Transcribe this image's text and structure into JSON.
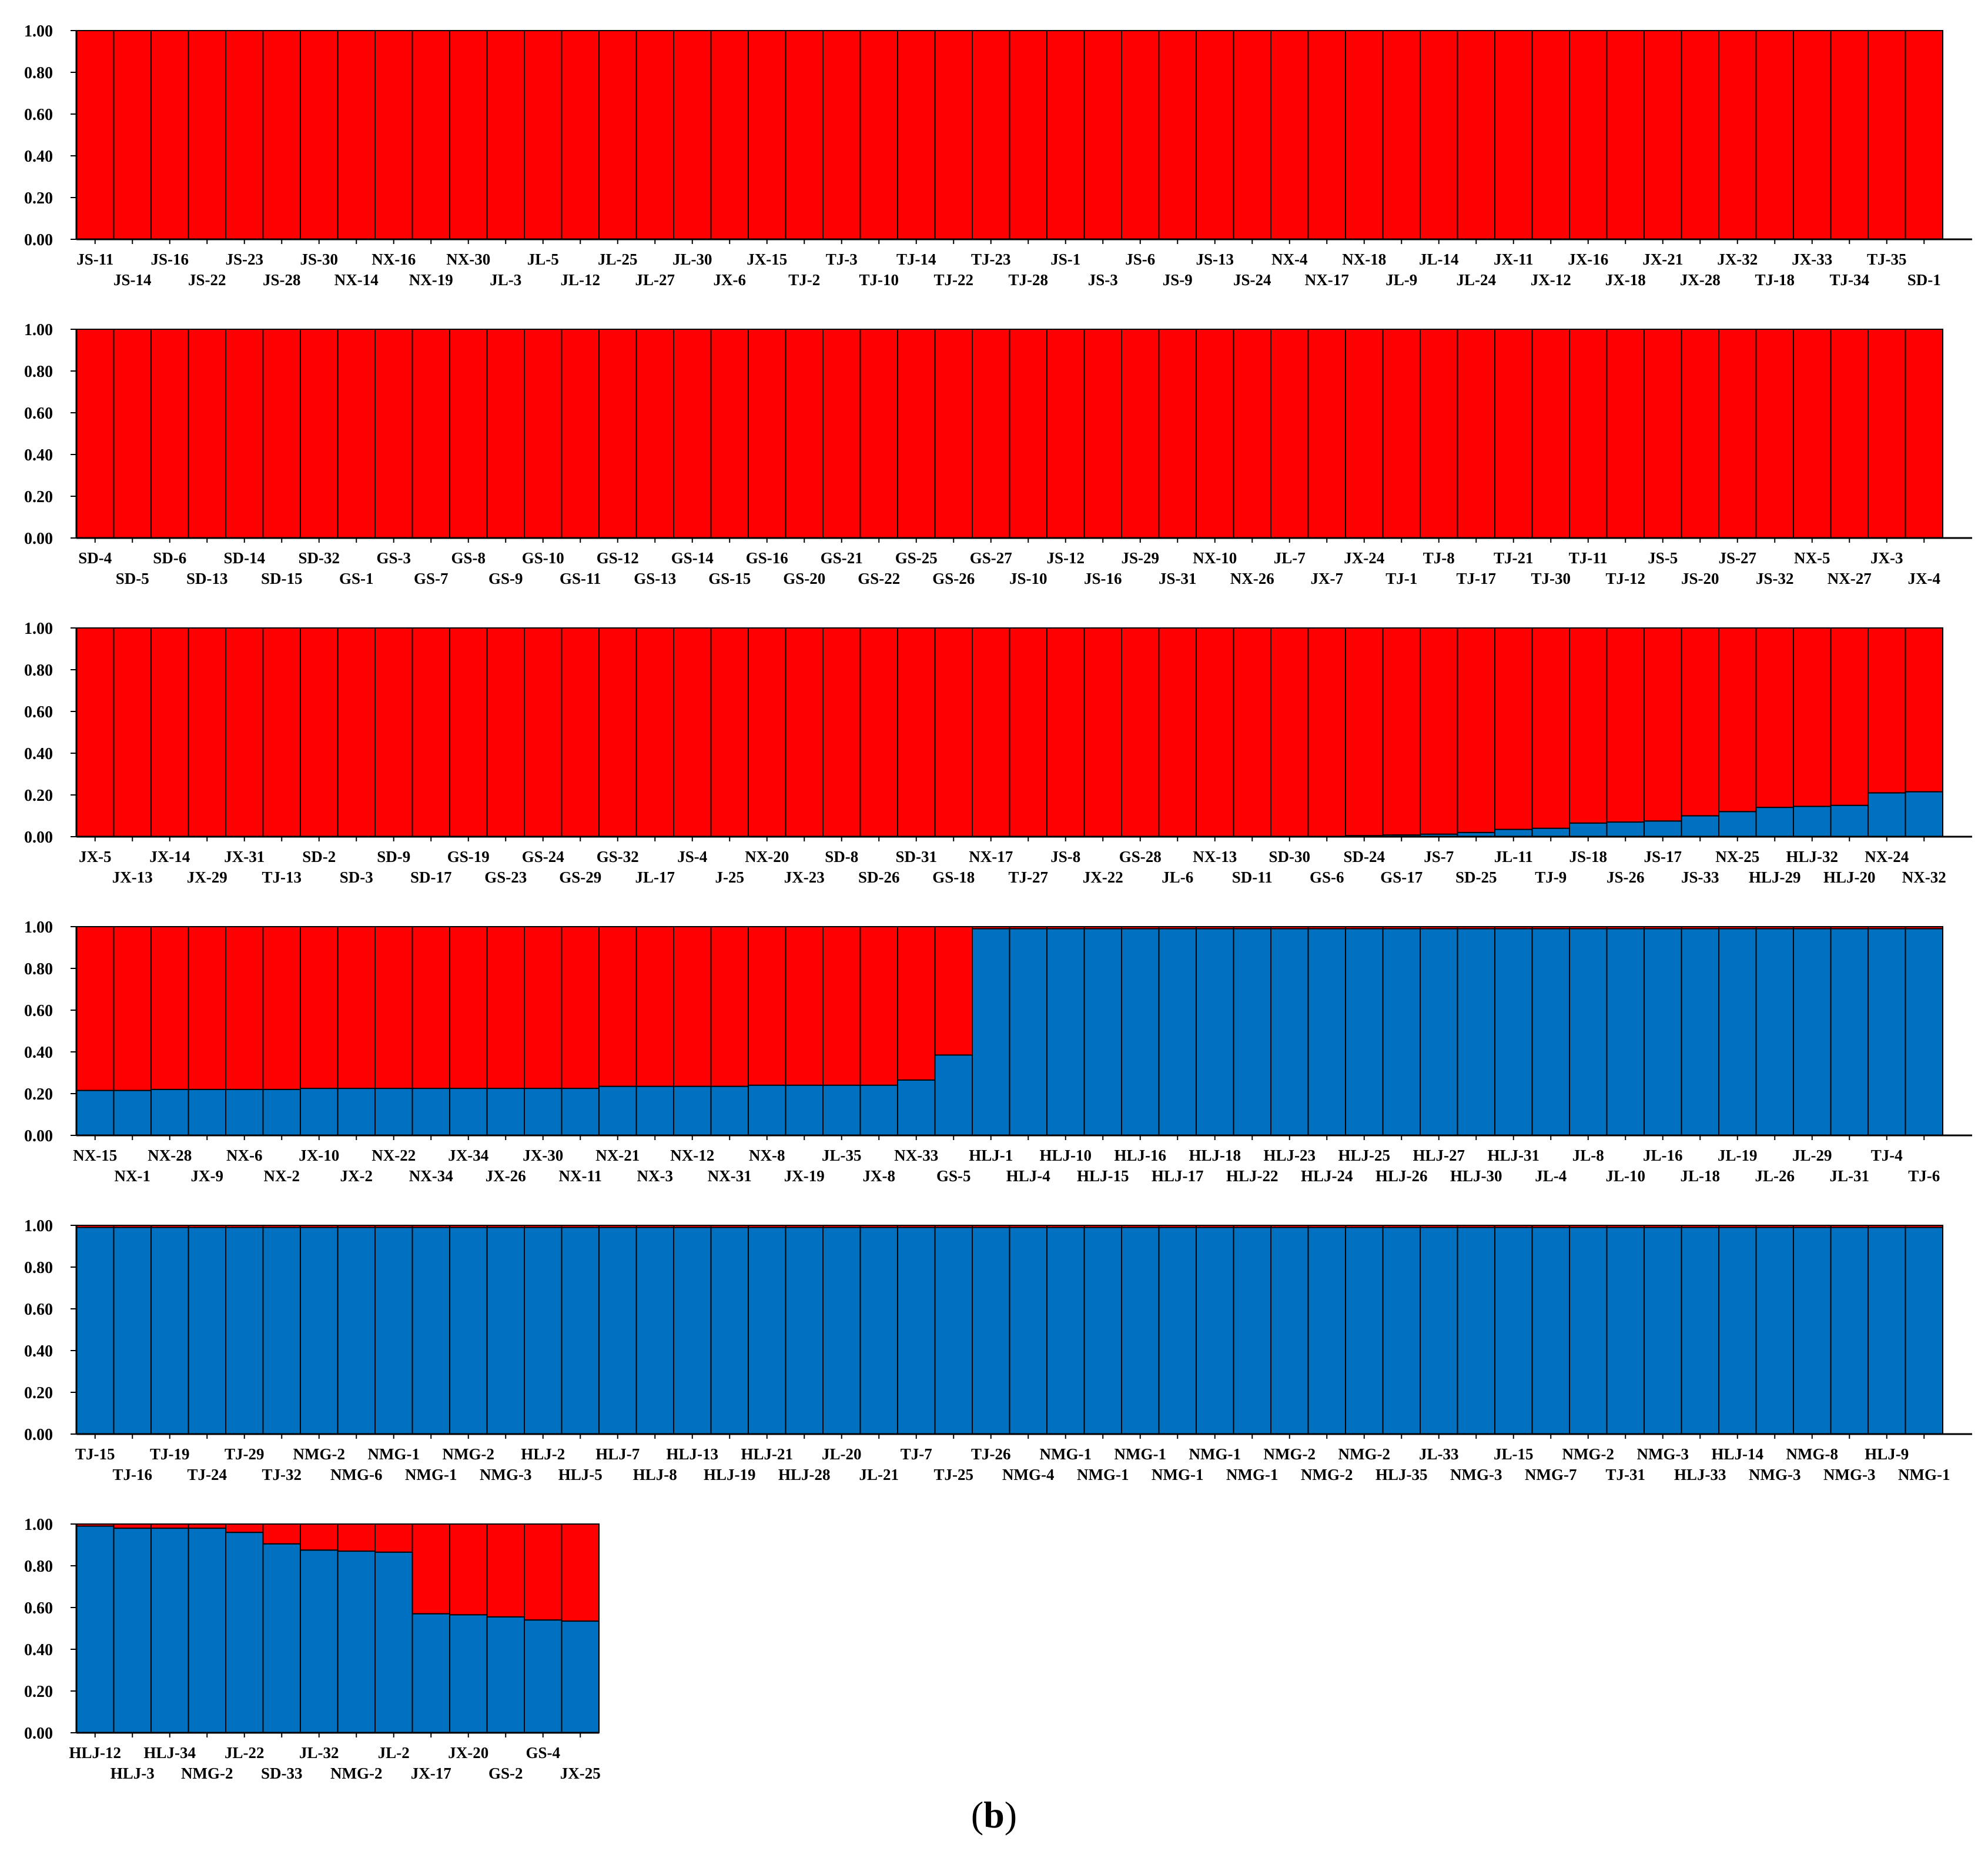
{
  "figure": {
    "caption_open": "(",
    "caption_letter": "b",
    "caption_close": ")"
  },
  "colors": {
    "cluster1": "#FF0000",
    "cluster2": "#0070C0",
    "outline": "#000000"
  },
  "chart_data": [
    {
      "type": "bar",
      "stacked": true,
      "ylim": [
        0,
        1
      ],
      "yticks": [
        "0.00",
        "0.20",
        "0.40",
        "0.60",
        "0.80",
        "1.00"
      ],
      "categories": [
        "JS-11",
        "JS-14",
        "JS-16",
        "JS-22",
        "JS-23",
        "JS-28",
        "JS-30",
        "NX-14",
        "NX-16",
        "NX-19",
        "NX-30",
        "JL-3",
        "JL-5",
        "JL-12",
        "JL-25",
        "JL-27",
        "JL-30",
        "JX-6",
        "JX-15",
        "TJ-2",
        "TJ-3",
        "TJ-10",
        "TJ-14",
        "TJ-22",
        "TJ-23",
        "TJ-28",
        "JS-1",
        "JS-3",
        "JS-6",
        "JS-9",
        "JS-13",
        "JS-24",
        "NX-4",
        "NX-17",
        "NX-18",
        "JL-9",
        "JL-14",
        "JL-24",
        "JX-11",
        "JX-12",
        "JX-16",
        "JX-18",
        "JX-21",
        "JX-28",
        "JX-32",
        "TJ-18",
        "JX-33",
        "TJ-34",
        "TJ-35",
        "SD-1"
      ],
      "series": [
        {
          "values": [
            0,
            0,
            0,
            0,
            0,
            0,
            0,
            0,
            0,
            0,
            0,
            0,
            0,
            0,
            0,
            0,
            0,
            0,
            0,
            0,
            0,
            0,
            0,
            0,
            0,
            0,
            0,
            0,
            0,
            0,
            0,
            0,
            0,
            0,
            0,
            0,
            0,
            0,
            0,
            0,
            0,
            0,
            0,
            0,
            0,
            0,
            0,
            0,
            0,
            0
          ]
        },
        {
          "values": [
            1,
            1,
            1,
            1,
            1,
            1,
            1,
            1,
            1,
            1,
            1,
            1,
            1,
            1,
            1,
            1,
            1,
            1,
            1,
            1,
            1,
            1,
            1,
            1,
            1,
            1,
            1,
            1,
            1,
            1,
            1,
            1,
            1,
            1,
            1,
            1,
            1,
            1,
            1,
            1,
            1,
            1,
            1,
            1,
            1,
            1,
            1,
            1,
            1,
            1
          ]
        }
      ]
    },
    {
      "type": "bar",
      "stacked": true,
      "ylim": [
        0,
        1
      ],
      "yticks": [
        "0.00",
        "0.20",
        "0.40",
        "0.60",
        "0.80",
        "1.00"
      ],
      "categories": [
        "SD-4",
        "SD-5",
        "SD-6",
        "SD-13",
        "SD-14",
        "SD-15",
        "SD-32",
        "GS-1",
        "GS-3",
        "GS-7",
        "GS-8",
        "GS-9",
        "GS-10",
        "GS-11",
        "GS-12",
        "GS-13",
        "GS-14",
        "GS-15",
        "GS-16",
        "GS-20",
        "GS-21",
        "GS-22",
        "GS-25",
        "GS-26",
        "GS-27",
        "JS-10",
        "JS-12",
        "JS-16",
        "JS-29",
        "JS-31",
        "NX-10",
        "NX-26",
        "JL-7",
        "JX-7",
        "JX-24",
        "TJ-1",
        "TJ-8",
        "TJ-17",
        "TJ-21",
        "TJ-30",
        "TJ-11",
        "TJ-12",
        "JS-5",
        "JS-20",
        "JS-27",
        "JS-32",
        "NX-5",
        "NX-27",
        "JX-3",
        "JX-4"
      ],
      "series": [
        {
          "values": [
            0,
            0,
            0,
            0,
            0,
            0,
            0,
            0,
            0,
            0,
            0,
            0,
            0,
            0,
            0,
            0,
            0,
            0,
            0,
            0,
            0,
            0,
            0,
            0,
            0,
            0,
            0,
            0,
            0,
            0,
            0,
            0,
            0,
            0,
            0,
            0,
            0,
            0,
            0,
            0,
            0,
            0,
            0,
            0,
            0,
            0,
            0,
            0,
            0,
            0
          ]
        },
        {
          "values": [
            1,
            1,
            1,
            1,
            1,
            1,
            1,
            1,
            1,
            1,
            1,
            1,
            1,
            1,
            1,
            1,
            1,
            1,
            1,
            1,
            1,
            1,
            1,
            1,
            1,
            1,
            1,
            1,
            1,
            1,
            1,
            1,
            1,
            1,
            1,
            1,
            1,
            1,
            1,
            1,
            1,
            1,
            1,
            1,
            1,
            1,
            1,
            1,
            1,
            1
          ]
        }
      ]
    },
    {
      "type": "bar",
      "stacked": true,
      "ylim": [
        0,
        1
      ],
      "yticks": [
        "0.00",
        "0.20",
        "0.40",
        "0.60",
        "0.80",
        "1.00"
      ],
      "categories": [
        "JX-5",
        "JX-13",
        "JX-14",
        "JX-29",
        "JX-31",
        "TJ-13",
        "SD-2",
        "SD-3",
        "SD-9",
        "SD-17",
        "GS-19",
        "GS-23",
        "GS-24",
        "GS-29",
        "GS-32",
        "JL-17",
        "JS-4",
        "J-25",
        "NX-20",
        "JX-23",
        "SD-8",
        "SD-26",
        "SD-31",
        "GS-18",
        "NX-17",
        "TJ-27",
        "JS-8",
        "JX-22",
        "GS-28",
        "JL-6",
        "NX-13",
        "SD-11",
        "SD-30",
        "GS-6",
        "SD-24",
        "GS-17",
        "JS-7",
        "SD-25",
        "JL-11",
        "TJ-9",
        "JS-18",
        "JS-26",
        "JS-17",
        "JS-33",
        "NX-25",
        "HLJ-29",
        "HLJ-32",
        "HLJ-20",
        "NX-24",
        "NX-32"
      ],
      "series": [
        {
          "values": [
            0,
            0,
            0,
            0,
            0,
            0,
            0,
            0,
            0,
            0,
            0,
            0,
            0,
            0,
            0,
            0,
            0,
            0,
            0,
            0,
            0,
            0,
            0,
            0,
            0,
            0,
            0,
            0,
            0,
            0,
            0,
            0,
            0,
            0,
            0.005,
            0.008,
            0.012,
            0.02,
            0.035,
            0.04,
            0.065,
            0.07,
            0.075,
            0.1,
            0.12,
            0.14,
            0.145,
            0.15,
            0.21,
            0.215
          ]
        },
        {
          "values": [
            1,
            1,
            1,
            1,
            1,
            1,
            1,
            1,
            1,
            1,
            1,
            1,
            1,
            1,
            1,
            1,
            1,
            1,
            1,
            1,
            1,
            1,
            1,
            1,
            1,
            1,
            1,
            1,
            1,
            1,
            1,
            1,
            1,
            1,
            0.995,
            0.992,
            0.988,
            0.98,
            0.965,
            0.96,
            0.935,
            0.93,
            0.925,
            0.9,
            0.88,
            0.86,
            0.855,
            0.85,
            0.79,
            0.785
          ]
        }
      ]
    },
    {
      "type": "bar",
      "stacked": true,
      "ylim": [
        0,
        1
      ],
      "yticks": [
        "0.00",
        "0.20",
        "0.40",
        "0.60",
        "0.80",
        "1.00"
      ],
      "categories": [
        "NX-15",
        "NX-1",
        "NX-28",
        "JX-9",
        "NX-6",
        "NX-2",
        "JX-10",
        "JX-2",
        "NX-22",
        "NX-34",
        "JX-34",
        "JX-26",
        "JX-30",
        "NX-11",
        "NX-21",
        "NX-3",
        "NX-12",
        "NX-31",
        "NX-8",
        "JX-19",
        "JL-35",
        "JX-8",
        "NX-33",
        "GS-5",
        "HLJ-1",
        "HLJ-4",
        "HLJ-10",
        "HLJ-15",
        "HLJ-16",
        "HLJ-17",
        "HLJ-18",
        "HLJ-22",
        "HLJ-23",
        "HLJ-24",
        "HLJ-25",
        "HLJ-26",
        "HLJ-27",
        "HLJ-30",
        "HLJ-31",
        "JL-4",
        "JL-8",
        "JL-10",
        "JL-16",
        "JL-18",
        "JL-19",
        "JL-26",
        "JL-29",
        "JL-31",
        "TJ-4",
        "TJ-6"
      ],
      "series": [
        {
          "values": [
            0.215,
            0.215,
            0.22,
            0.22,
            0.22,
            0.22,
            0.225,
            0.225,
            0.225,
            0.225,
            0.225,
            0.225,
            0.225,
            0.225,
            0.235,
            0.235,
            0.235,
            0.235,
            0.24,
            0.24,
            0.24,
            0.24,
            0.265,
            0.385,
            0.99,
            0.99,
            0.99,
            0.99,
            0.99,
            0.99,
            0.99,
            0.99,
            0.99,
            0.99,
            0.99,
            0.99,
            0.99,
            0.99,
            0.99,
            0.99,
            0.99,
            0.99,
            0.99,
            0.99,
            0.99,
            0.99,
            0.99,
            0.99,
            0.99,
            0.99
          ]
        },
        {
          "values": [
            0.785,
            0.785,
            0.78,
            0.78,
            0.78,
            0.78,
            0.775,
            0.775,
            0.775,
            0.775,
            0.775,
            0.775,
            0.775,
            0.775,
            0.765,
            0.765,
            0.765,
            0.765,
            0.76,
            0.76,
            0.76,
            0.76,
            0.735,
            0.615,
            0.01,
            0.01,
            0.01,
            0.01,
            0.01,
            0.01,
            0.01,
            0.01,
            0.01,
            0.01,
            0.01,
            0.01,
            0.01,
            0.01,
            0.01,
            0.01,
            0.01,
            0.01,
            0.01,
            0.01,
            0.01,
            0.01,
            0.01,
            0.01,
            0.01,
            0.01
          ]
        }
      ]
    },
    {
      "type": "bar",
      "stacked": true,
      "ylim": [
        0,
        1
      ],
      "yticks": [
        "0.00",
        "0.20",
        "0.40",
        "0.60",
        "0.80",
        "1.00"
      ],
      "categories": [
        "TJ-15",
        "TJ-16",
        "TJ-19",
        "TJ-24",
        "TJ-29",
        "TJ-32",
        "NMG-2",
        "NMG-6",
        "NMG-1",
        "NMG-1",
        "NMG-2",
        "NMG-3",
        "HLJ-2",
        "HLJ-5",
        "HLJ-7",
        "HLJ-8",
        "HLJ-13",
        "HLJ-19",
        "HLJ-21",
        "HLJ-28",
        "JL-20",
        "JL-21",
        "TJ-7",
        "TJ-25",
        "TJ-26",
        "NMG-4",
        "NMG-1",
        "NMG-1",
        "NMG-1",
        "NMG-1",
        "NMG-1",
        "NMG-1",
        "NMG-2",
        "NMG-2",
        "NMG-2",
        "HLJ-35",
        "JL-33",
        "NMG-3",
        "JL-15",
        "NMG-7",
        "NMG-2",
        "TJ-31",
        "NMG-3",
        "HLJ-33",
        "HLJ-14",
        "NMG-3",
        "NMG-8",
        "NMG-3",
        "HLJ-9",
        "NMG-1"
      ],
      "series": [
        {
          "values": [
            0.99,
            0.99,
            0.99,
            0.99,
            0.99,
            0.99,
            0.99,
            0.99,
            0.99,
            0.99,
            0.99,
            0.99,
            0.99,
            0.99,
            0.99,
            0.99,
            0.99,
            0.99,
            0.99,
            0.99,
            0.99,
            0.99,
            0.99,
            0.99,
            0.99,
            0.99,
            0.99,
            0.99,
            0.99,
            0.99,
            0.99,
            0.99,
            0.99,
            0.99,
            0.99,
            0.99,
            0.99,
            0.99,
            0.99,
            0.99,
            0.99,
            0.99,
            0.99,
            0.99,
            0.99,
            0.99,
            0.99,
            0.99,
            0.99,
            0.99
          ]
        },
        {
          "values": [
            0.01,
            0.01,
            0.01,
            0.01,
            0.01,
            0.01,
            0.01,
            0.01,
            0.01,
            0.01,
            0.01,
            0.01,
            0.01,
            0.01,
            0.01,
            0.01,
            0.01,
            0.01,
            0.01,
            0.01,
            0.01,
            0.01,
            0.01,
            0.01,
            0.01,
            0.01,
            0.01,
            0.01,
            0.01,
            0.01,
            0.01,
            0.01,
            0.01,
            0.01,
            0.01,
            0.01,
            0.01,
            0.01,
            0.01,
            0.01,
            0.01,
            0.01,
            0.01,
            0.01,
            0.01,
            0.01,
            0.01,
            0.01,
            0.01,
            0.01
          ]
        }
      ]
    },
    {
      "type": "bar",
      "stacked": true,
      "ylim": [
        0,
        1
      ],
      "yticks": [
        "0.00",
        "0.20",
        "0.40",
        "0.60",
        "0.80",
        "1.00"
      ],
      "categories": [
        "HLJ-12",
        "HLJ-3",
        "HLJ-34",
        "NMG-2",
        "JL-22",
        "SD-33",
        "JL-32",
        "NMG-2",
        "JL-2",
        "JX-17",
        "JX-20",
        "GS-2",
        "GS-4",
        "JX-25"
      ],
      "series": [
        {
          "values": [
            0.99,
            0.98,
            0.98,
            0.98,
            0.96,
            0.905,
            0.875,
            0.87,
            0.865,
            0.57,
            0.565,
            0.555,
            0.54,
            0.535
          ]
        },
        {
          "values": [
            0.01,
            0.02,
            0.02,
            0.02,
            0.04,
            0.095,
            0.125,
            0.13,
            0.135,
            0.43,
            0.435,
            0.445,
            0.46,
            0.465
          ]
        }
      ]
    }
  ]
}
